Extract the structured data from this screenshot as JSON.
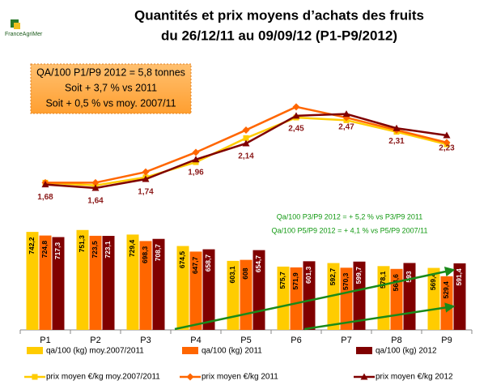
{
  "logo": "FranceAgriMer",
  "chart_data": {
    "type": "bar",
    "title": [
      "Quantités et prix moyens d’achats des fruits",
      "du 26/12/11 au 09/09/12 (P1-P9/2012)"
    ],
    "annotations": [
      "QA/100 P1/P9 2012 = 5,8 tonnes",
      "Soit + 3,7 % vs 2011",
      "Soit + 0,5 % vs moy. 2007/11"
    ],
    "notes": [
      "Qa/100 P3/P9 2012 = + 5,2 % vs P3/P9 2011",
      "Qa/100 P5/P9 2012 = + 4,1 % vs P5/P9 2007/11"
    ],
    "categories": [
      "P1",
      "P2",
      "P3",
      "P4",
      "P5",
      "P6",
      "P7",
      "P8",
      "P9"
    ],
    "ylim": [
      272,
      1505
    ],
    "y2lim": [
      0.05,
      2.93
    ],
    "series": [
      {
        "name": "qa/100 (kg) moy.2007/2011",
        "type": "bar",
        "color": "#ffcc00",
        "values": [
          742.2,
          751.3,
          729.4,
          674.5,
          603.1,
          575.7,
          592.7,
          578.1,
          569.4
        ],
        "value_labels": [
          "742,2",
          "751,3",
          "729,4",
          "674,5",
          "603,1",
          "575,7",
          "592,7",
          "578,1",
          "569,4"
        ]
      },
      {
        "name": "qa/100 (kg) 2011",
        "type": "bar",
        "color": "#ff6600",
        "values": [
          724.8,
          723.5,
          698.3,
          647.7,
          608,
          571.9,
          570.3,
          564.6,
          529.4
        ],
        "value_labels": [
          "724,8",
          "723,5",
          "698,3",
          "647,7",
          "608",
          "571,9",
          "570,3",
          "564,6",
          "529,4"
        ]
      },
      {
        "name": "qa/100 (kg) 2012",
        "type": "bar",
        "color": "#800000",
        "values": [
          717.3,
          723.1,
          708.7,
          658.7,
          654.7,
          601.3,
          599.7,
          593,
          591.4
        ],
        "value_labels": [
          "717,3",
          "723,1",
          "708,7",
          "658,7",
          "654,7",
          "601,3",
          "599,7",
          "593",
          "591,4"
        ]
      },
      {
        "name": "prix moyen €/kg moy.2007/2011",
        "type": "line",
        "axis": "y2",
        "color": "#ffcc00",
        "marker": "square",
        "values": [
          1.7,
          1.67,
          1.76,
          1.93,
          2.2,
          2.43,
          2.4,
          2.27,
          2.13
        ]
      },
      {
        "name": "prix moyen €/kg 2011",
        "type": "line",
        "axis": "y2",
        "color": "#ff6600",
        "marker": "diamond",
        "values": [
          1.7,
          1.7,
          1.82,
          2.04,
          2.29,
          2.55,
          2.43,
          2.29,
          2.15
        ]
      },
      {
        "name": "prix moyen €/kg 2012",
        "type": "line",
        "axis": "y2",
        "color": "#800000",
        "marker": "triangle",
        "values": [
          1.68,
          1.64,
          1.74,
          1.96,
          2.14,
          2.45,
          2.47,
          2.31,
          2.23
        ],
        "value_labels": [
          "1,68",
          "1,64",
          "1,74",
          "1,96",
          "2,14",
          "2,45",
          "2,47",
          "2,31",
          "2,23"
        ]
      }
    ]
  }
}
